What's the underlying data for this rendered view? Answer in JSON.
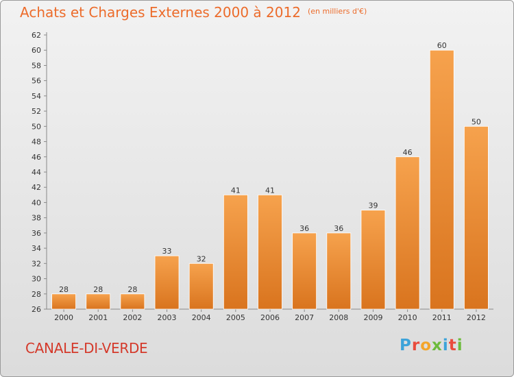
{
  "header": {
    "title": "Achats et Charges Externes 2000 à 2012",
    "unit": "(en milliers d'€)"
  },
  "footer": {
    "commune": "CANALE-DI-VERDE",
    "logo_letters": [
      "P",
      "r",
      "o",
      "x",
      "i",
      "t",
      "i"
    ],
    "logo_colors": [
      "#3da3d9",
      "#e94b3c",
      "#f4a52a",
      "#6dbb3c",
      "#3da3d9",
      "#e94b3c",
      "#6dbb3c"
    ]
  },
  "colors": {
    "title": "#ec6b2a",
    "commune": "#d4392a",
    "bar_light": "#f6a24d",
    "bar_dark": "#d9741e"
  },
  "chart_data": {
    "type": "bar",
    "title": "Achats et Charges Externes 2000 à 2012",
    "subtitle": "(en milliers d'€)",
    "categories": [
      "2000",
      "2001",
      "2002",
      "2003",
      "2004",
      "2005",
      "2006",
      "2007",
      "2008",
      "2009",
      "2010",
      "2011",
      "2012"
    ],
    "values": [
      28,
      28,
      28,
      33,
      32,
      41,
      41,
      36,
      36,
      39,
      46,
      60,
      50
    ],
    "ylim": [
      26,
      62
    ],
    "yticks": [
      26,
      28,
      30,
      32,
      34,
      36,
      38,
      40,
      42,
      44,
      46,
      48,
      50,
      52,
      54,
      56,
      58,
      60,
      62
    ],
    "grid": false,
    "legend": "none"
  }
}
